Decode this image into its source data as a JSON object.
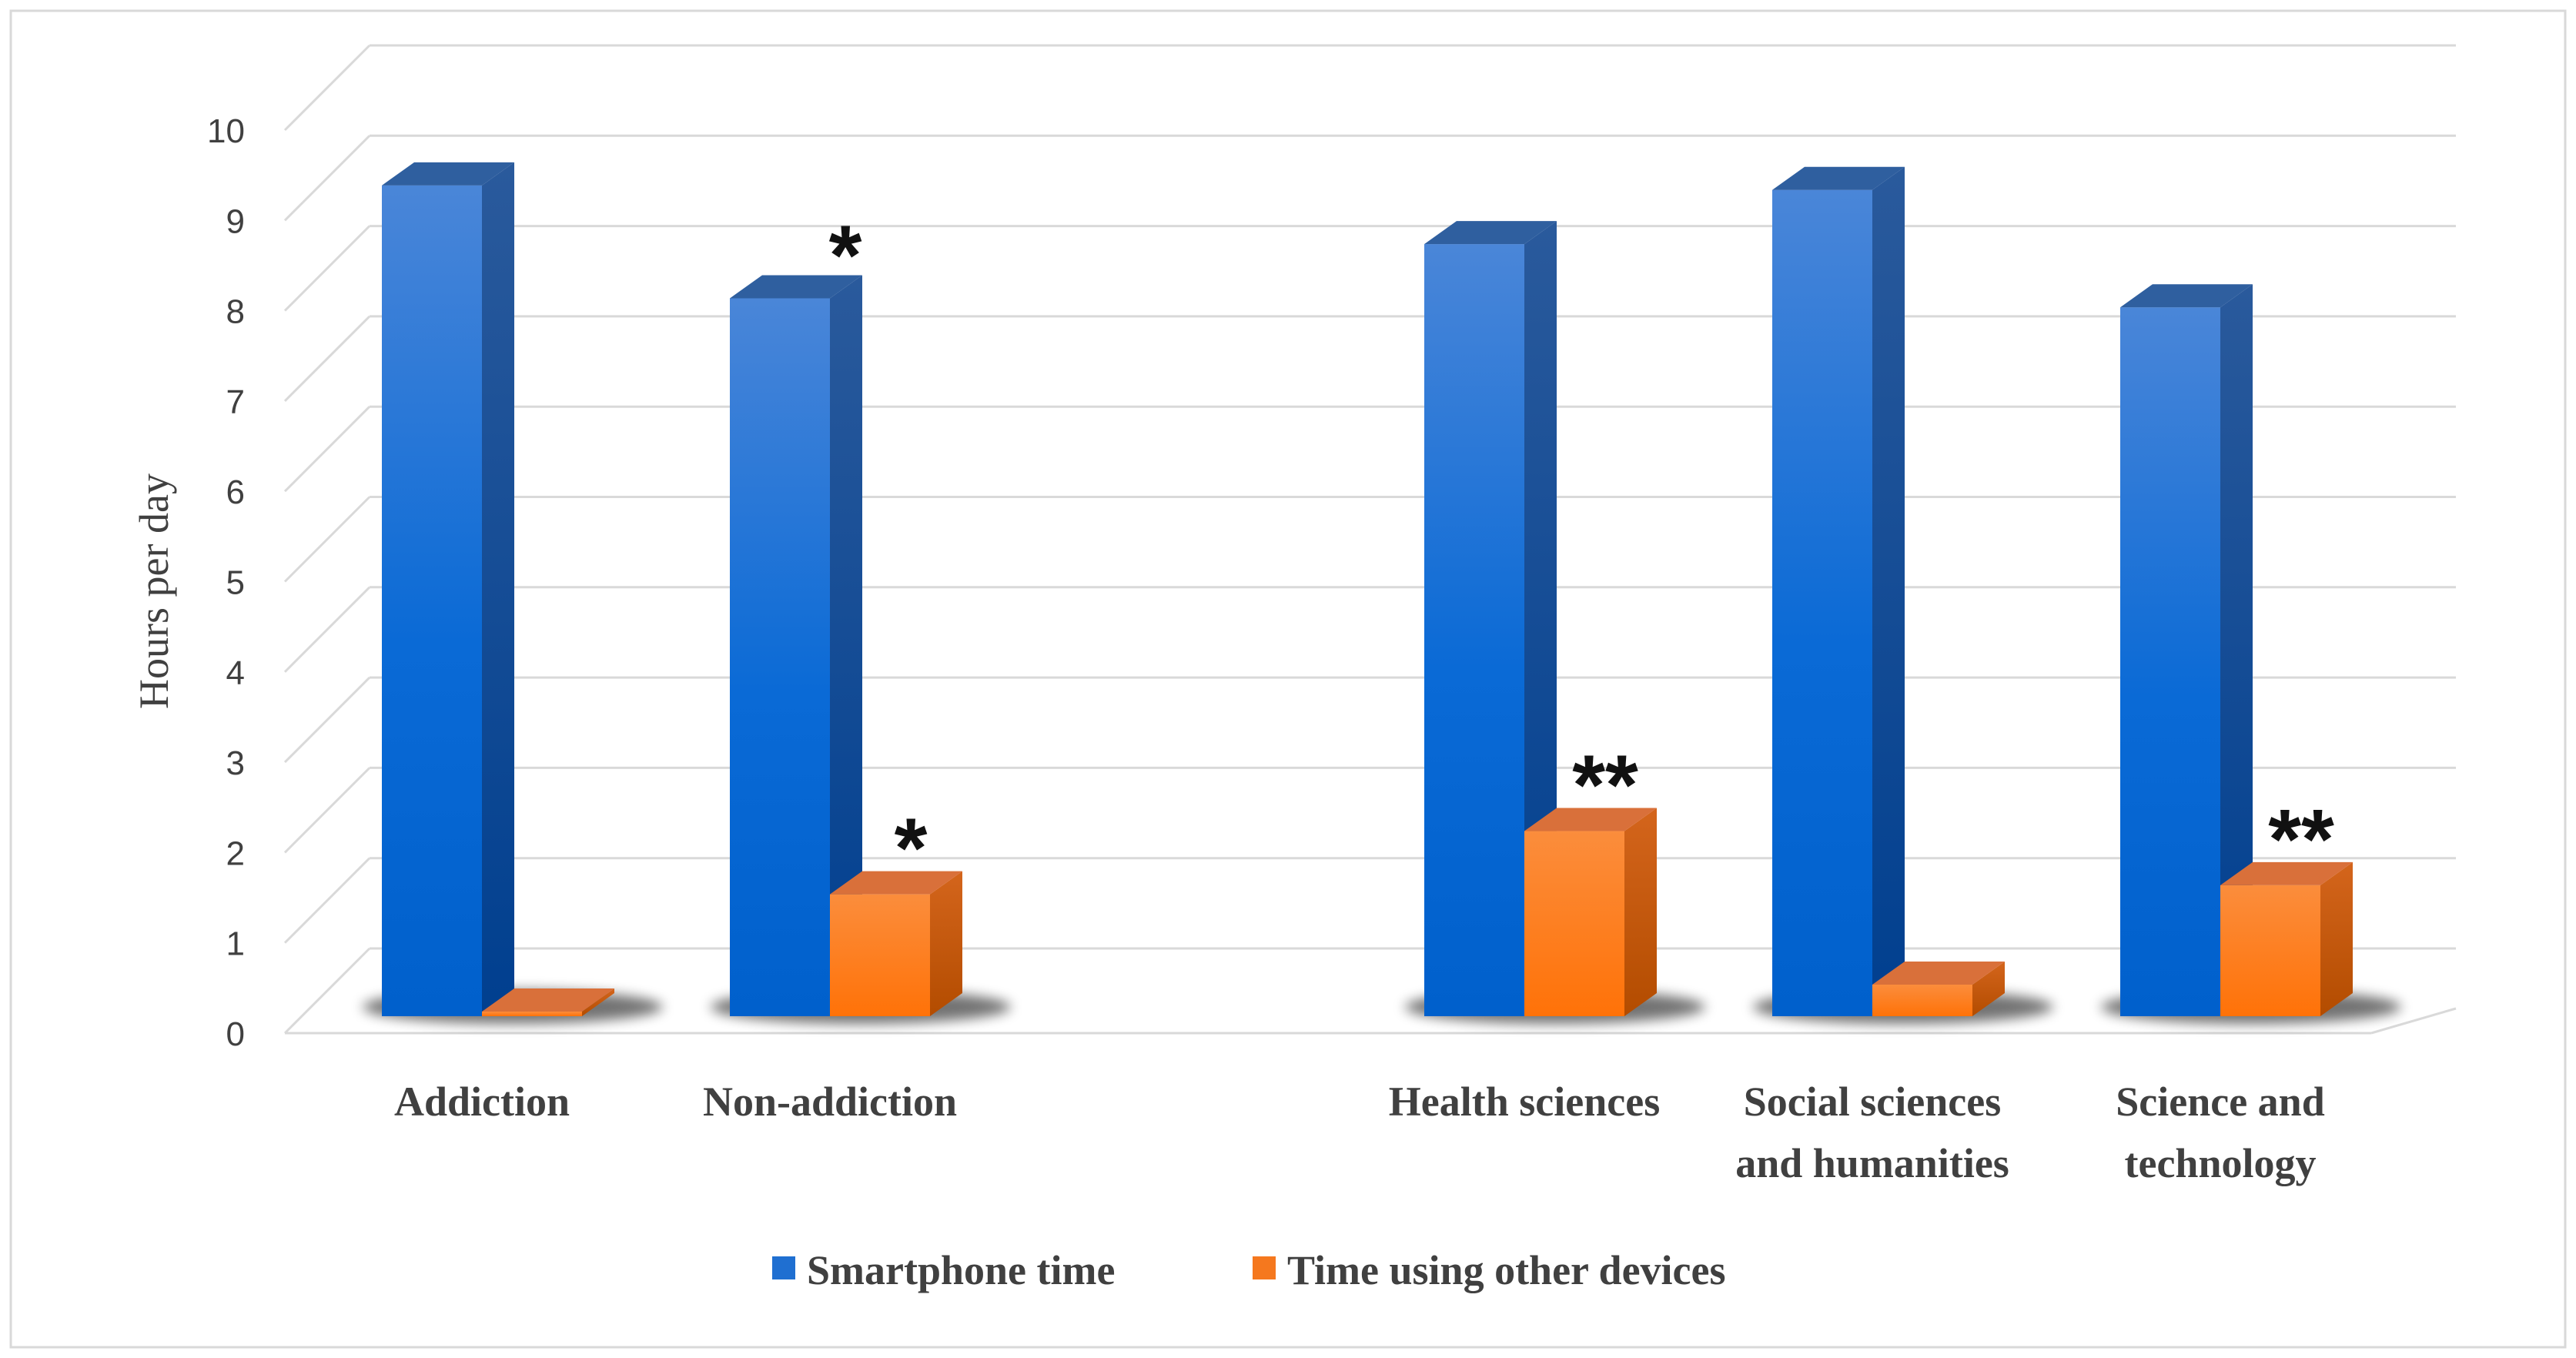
{
  "chart_data": {
    "type": "bar",
    "ylabel": "Hours per day",
    "ylim": [
      0,
      10
    ],
    "yticks": [
      "0",
      "1",
      "2",
      "3",
      "4",
      "5",
      "6",
      "7",
      "8",
      "9",
      "10"
    ],
    "grid": true,
    "legend_position": "bottom",
    "groups": [
      {
        "label": "Addiction",
        "smartphone": 9.2,
        "other": 0.05,
        "smartphone_mark": "",
        "other_mark": ""
      },
      {
        "label": "Non-addiction",
        "smartphone": 7.95,
        "other": 1.35,
        "smartphone_mark": "*",
        "other_mark": "*"
      },
      {
        "label": "",
        "smartphone": null,
        "other": null,
        "smartphone_mark": "",
        "other_mark": ""
      },
      {
        "label": "Health sciences",
        "smartphone": 8.55,
        "other": 2.05,
        "smartphone_mark": "",
        "other_mark": "**"
      },
      {
        "label": "Social sciences and humanities",
        "smartphone": 9.15,
        "other": 0.35,
        "smartphone_mark": "",
        "other_mark": ""
      },
      {
        "label": "Science and technology",
        "smartphone": 7.85,
        "other": 1.45,
        "smartphone_mark": "",
        "other_mark": "**"
      }
    ],
    "series": [
      {
        "name": "Smartphone time",
        "color": "#1f6fd1"
      },
      {
        "name": "Time using other devices",
        "color": "#f5781e"
      }
    ]
  }
}
